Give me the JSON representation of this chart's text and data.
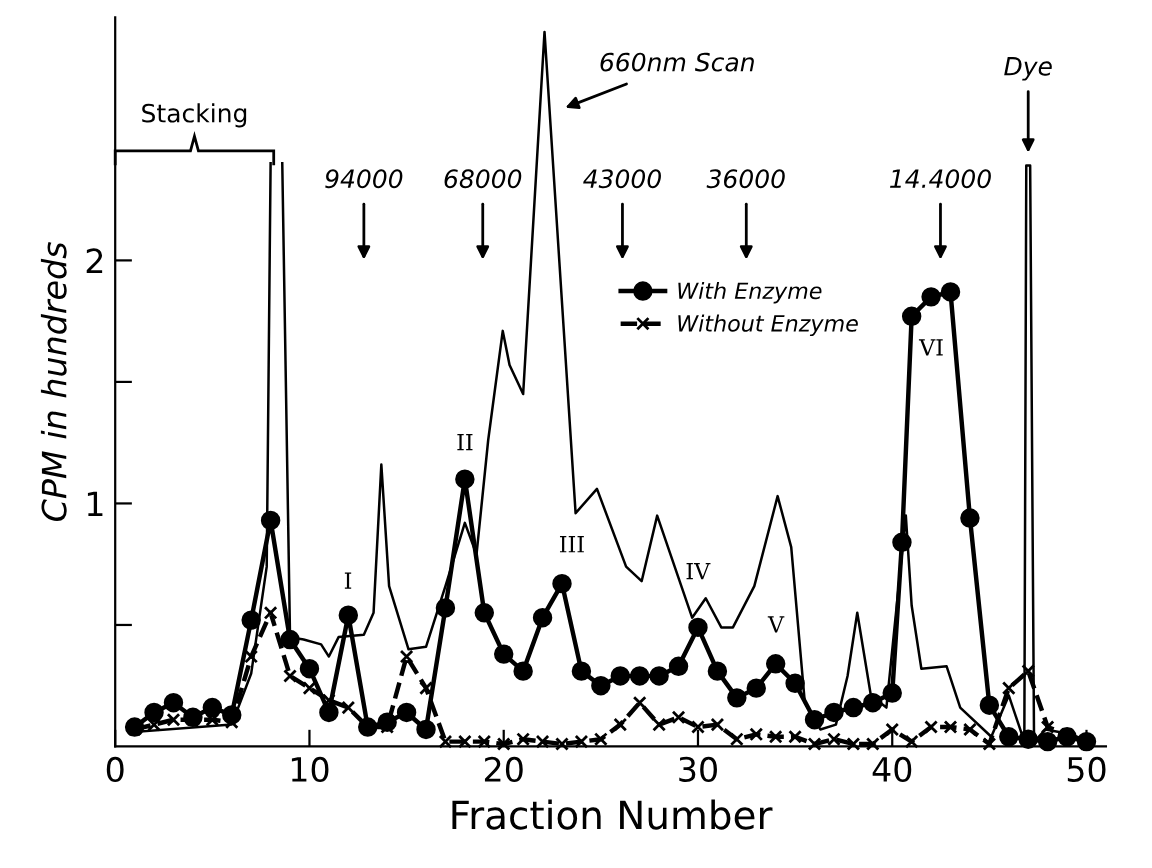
{
  "chart_data": {
    "type": "line",
    "xlabel": "Fraction Number",
    "ylabel": "CPM in hundreds",
    "xlim": [
      0,
      51
    ],
    "ylim": [
      0,
      3
    ],
    "xticks": [
      0,
      10,
      20,
      30,
      40,
      50
    ],
    "yticks": [
      {
        "value": 0.5,
        "label": null
      },
      1,
      {
        "value": 1.5,
        "label": null
      },
      2
    ],
    "grid": false,
    "legend": "right",
    "series": [
      {
        "color": "#000000",
        "marker": "none",
        "line_style": "solid",
        "x": [
          1,
          6,
          7,
          7.8,
          8.0,
          8.3,
          8.6,
          9.0,
          9.7,
          10.6,
          11.0,
          11.5,
          12.8,
          13.3,
          13.7,
          14.1,
          15.1,
          16.0,
          17.0,
          18.0,
          18.6,
          19.2,
          19.95,
          20.3,
          21.0,
          22.1,
          23.7,
          24.8,
          26.3,
          27.1,
          27.9,
          29.7,
          30.4,
          31.2,
          31.8,
          32.9,
          34.1,
          34.8,
          35.5,
          36.3,
          37.1,
          37.7,
          38.2,
          38.9,
          39.7,
          40.7,
          41.0,
          41.5,
          42.8,
          43.5,
          45.1,
          46.0,
          46.8,
          46.9,
          47.1,
          47.3,
          47.9,
          49.2,
          50.2
        ],
        "values": [
          0.06,
          0.09,
          0.3,
          0.74,
          2.4,
          null,
          2.4,
          0.45,
          0.44,
          0.42,
          0.37,
          0.45,
          0.46,
          0.55,
          1.16,
          0.66,
          0.4,
          0.41,
          0.66,
          0.92,
          0.79,
          1.26,
          1.71,
          1.57,
          1.45,
          2.94,
          0.96,
          1.06,
          0.74,
          0.68,
          0.95,
          0.53,
          0.61,
          0.49,
          0.49,
          0.66,
          1.03,
          0.82,
          0.18,
          0.07,
          0.09,
          0.29,
          0.55,
          0.21,
          0.16,
          0.95,
          0.58,
          0.32,
          0.33,
          0.16,
          0.04,
          0.21,
          0.02,
          2.39,
          2.39,
          0.02,
          0.07,
          0.05,
          0.02
        ]
      },
      {
        "name": "With Enzyme",
        "color": "#000000",
        "marker": "circle",
        "line_style": "solid",
        "x": [
          1,
          2,
          3,
          4,
          5,
          6,
          7,
          8,
          9,
          10,
          11,
          12,
          13,
          14,
          15,
          16,
          17,
          18,
          19,
          20,
          21,
          22,
          23,
          24,
          25,
          26,
          27,
          28,
          29,
          30,
          31,
          32,
          33,
          34,
          35,
          36,
          37,
          38,
          39,
          40,
          40.5,
          41,
          42,
          43,
          44,
          45,
          46,
          47,
          48,
          49,
          50
        ],
        "values": [
          0.08,
          0.14,
          0.18,
          0.12,
          0.16,
          0.13,
          0.52,
          0.93,
          0.44,
          0.32,
          0.14,
          0.54,
          0.08,
          0.1,
          0.14,
          0.07,
          0.57,
          1.1,
          0.55,
          0.38,
          0.31,
          0.53,
          0.67,
          0.31,
          0.25,
          0.29,
          0.29,
          0.29,
          0.33,
          0.49,
          0.31,
          0.2,
          0.24,
          0.34,
          0.26,
          0.11,
          0.14,
          0.16,
          0.18,
          0.22,
          0.84,
          1.77,
          1.85,
          1.87,
          0.94,
          0.17,
          0.04,
          0.03,
          0.02,
          0.04,
          0.02
        ]
      },
      {
        "name": "Without Enzyme",
        "color": "#000000",
        "marker": "cross",
        "line_style": "dashed",
        "x": [
          1,
          2,
          3,
          4,
          5,
          6,
          7,
          8,
          9,
          10,
          11,
          12,
          13,
          14,
          15,
          16,
          17,
          18,
          19,
          20,
          21,
          22,
          23,
          24,
          25,
          26,
          27,
          28,
          29,
          30,
          31,
          32,
          33,
          34,
          35,
          36,
          37,
          38,
          39,
          40,
          41,
          42,
          43,
          44,
          45,
          46,
          47,
          48,
          49,
          50
        ],
        "values": [
          0.07,
          0.09,
          0.11,
          0.11,
          0.11,
          0.1,
          0.37,
          0.55,
          0.29,
          0.24,
          0.19,
          0.16,
          0.08,
          0.08,
          0.37,
          0.24,
          0.02,
          0.02,
          0.02,
          0.01,
          0.03,
          0.02,
          0.01,
          0.02,
          0.03,
          0.09,
          0.18,
          0.09,
          0.12,
          0.08,
          0.09,
          0.03,
          0.05,
          0.04,
          0.04,
          0.01,
          0.03,
          0.01,
          0.01,
          0.07,
          0.02,
          0.08,
          0.08,
          0.07,
          0.01,
          0.24,
          0.31,
          0.08,
          0.05,
          0.01
        ]
      }
    ],
    "annotations": [
      "94000",
      "68000",
      "43000",
      "36000",
      "14.4000",
      {
        "text": "Dye",
        "x": 47.0,
        "y": 2.42
      },
      {
        "text": "660nm Scan",
        "x": 22.9,
        "y": 2.62
      },
      "Stacking",
      "I",
      "II",
      "III",
      "IV",
      "V",
      "VI"
    ]
  }
}
